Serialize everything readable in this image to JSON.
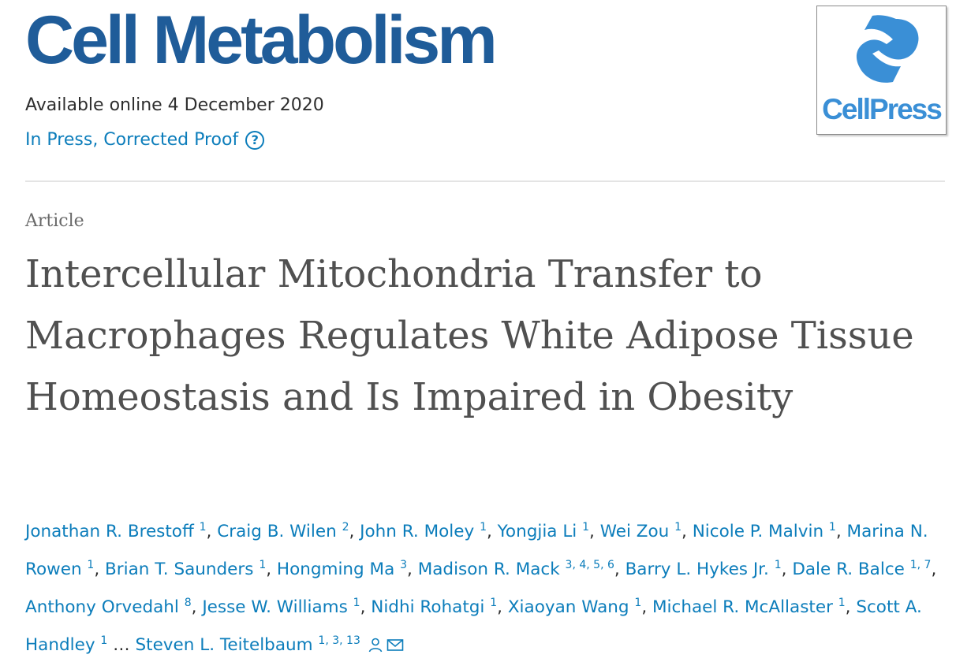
{
  "journal": {
    "title": "Cell Metabolism",
    "available_online": "Available online 4 December 2020",
    "status": "In Press, Corrected Proof",
    "help_icon": "question-circle-icon",
    "publisher_logo_text": "CellPress",
    "brand_color": "#1f5c99",
    "link_color": "#0c7dbb",
    "logo_color": "#3a8fd6"
  },
  "article": {
    "type": "Article",
    "title": "Intercellular Mitochondria Transfer to Macrophages Regulates White Adipose Tissue Homeostasis and Is Impaired in Obesity"
  },
  "authors": {
    "list": [
      {
        "name": "Jonathan R. Brestoff",
        "aff": "1"
      },
      {
        "name": "Craig B. Wilen",
        "aff": "2"
      },
      {
        "name": "John R. Moley",
        "aff": "1"
      },
      {
        "name": "Yongjia Li",
        "aff": "1"
      },
      {
        "name": "Wei Zou",
        "aff": "1"
      },
      {
        "name": "Nicole P. Malvin",
        "aff": "1"
      },
      {
        "name": "Marina N. Rowen",
        "aff": "1"
      },
      {
        "name": "Brian T. Saunders",
        "aff": "1"
      },
      {
        "name": "Hongming Ma",
        "aff": "3"
      },
      {
        "name": "Madison R. Mack",
        "aff": "3, 4, 5, 6"
      },
      {
        "name": "Barry L. Hykes Jr.",
        "aff": "1"
      },
      {
        "name": "Dale R. Balce",
        "aff": "1, 7"
      },
      {
        "name": "Anthony Orvedahl",
        "aff": "8"
      },
      {
        "name": "Jesse W. Williams",
        "aff": "1"
      },
      {
        "name": "Nidhi Rohatgi",
        "aff": "1"
      },
      {
        "name": "Xiaoyan Wang",
        "aff": "1"
      },
      {
        "name": "Michael R. McAllaster",
        "aff": "1"
      },
      {
        "name": "Scott A. Handley",
        "aff": "1"
      }
    ],
    "ellipsis": "…",
    "last": {
      "name": "Steven L. Teitelbaum",
      "aff": "1, 3, 13"
    },
    "corresponding_icons": [
      "person-icon",
      "envelope-icon"
    ]
  }
}
